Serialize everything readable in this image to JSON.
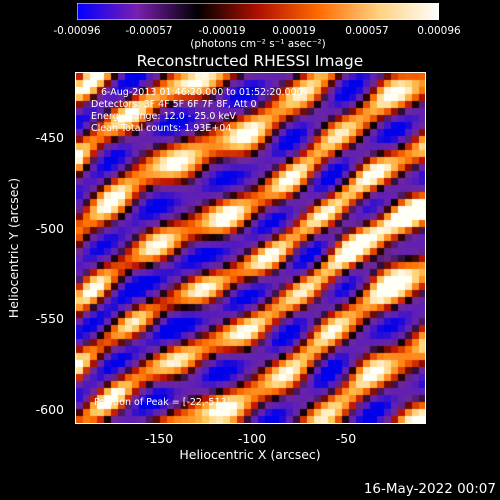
{
  "colorbar": {
    "ticks": [
      "-0.00096",
      "-0.00057",
      "-0.00019",
      "0.00019",
      "0.00057",
      "0.00096"
    ],
    "units": "(photons cm⁻² s⁻¹ asec⁻²)",
    "colors": [
      "#0000ff",
      "#7a1fb0",
      "#000000",
      "#b01000",
      "#ff6a00",
      "#ffd080",
      "#ffffff"
    ]
  },
  "title": "Reconstructed RHESSI Image",
  "info": {
    "time_range": "6-Aug-2013 01:46:20.000 to 01:52:20.000",
    "detectors": "Detectors: 3F 4F 5F 6F 7F 8F, Att 0",
    "energy": "Energy Range: 12.0 - 25.0 keV",
    "clean": "Clean     Total counts: 1.93E+04"
  },
  "peak": "Position of Peak = [-22,-513]",
  "axes": {
    "ylabel": "Heliocentric Y (arcsec)",
    "xlabel": "Heliocentric X (arcsec)",
    "yticks": [
      "-450",
      "-500",
      "-550",
      "-600"
    ],
    "xticks": [
      "-150",
      "-100",
      "-50"
    ],
    "xlim": [
      -197,
      -10
    ],
    "ylim": [
      -622,
      -417
    ]
  },
  "footer_date": "16-May-2022 00:07"
}
